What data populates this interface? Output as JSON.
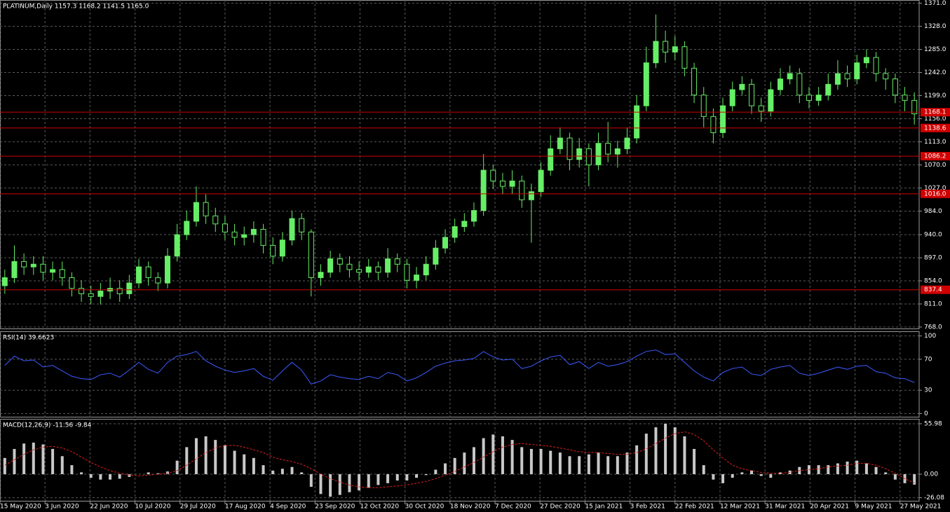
{
  "chart_data": [
    {
      "type": "candlestick",
      "title": "PLATINUM,Daily  1157.3 1168.2 1141.5 1165.0",
      "color": "#66ee66",
      "grid": true,
      "xlim": [
        0,
        96
      ],
      "ylim": [
        764,
        1377
      ],
      "yticks": [
        {
          "value": 1371,
          "label": "1371.0"
        },
        {
          "value": 1328,
          "label": "1328.0"
        },
        {
          "value": 1285,
          "label": "1285.0"
        },
        {
          "value": 1242,
          "label": "1242.0"
        },
        {
          "value": 1199,
          "label": "1199.0"
        },
        {
          "value": 1156,
          "label": "1156.0"
        },
        {
          "value": 1113,
          "label": "1113.0"
        },
        {
          "value": 1070,
          "label": "1070.0"
        },
        {
          "value": 1027,
          "label": "1027.0"
        },
        {
          "value": 984,
          "label": "984.0"
        },
        {
          "value": 940,
          "label": "940.0"
        },
        {
          "value": 897,
          "label": "897.0"
        },
        {
          "value": 854,
          "label": "854.0"
        },
        {
          "value": 811,
          "label": "811.0"
        },
        {
          "value": 768,
          "label": "768.0"
        }
      ],
      "levels": [
        1168.1,
        1138.6,
        1086.2,
        {
          "value": 1016,
          "label": "1016.0"
        },
        837.4
      ],
      "level_color": "#d00000",
      "open": [
        845,
        860,
        890,
        880,
        885,
        870,
        875,
        860,
        840,
        830,
        825,
        835,
        840,
        830,
        850,
        880,
        860,
        850,
        900,
        940,
        965,
        1000,
        975,
        960,
        945,
        935,
        940,
        950,
        920,
        900,
        930,
        970,
        945,
        860,
        870,
        895,
        885,
        875,
        870,
        880,
        870,
        895,
        885,
        855,
        865,
        885,
        915,
        935,
        955,
        965,
        985,
        1060,
        1040,
        1030,
        1040,
        1005,
        1020,
        1060,
        1100,
        1120,
        1080,
        1100,
        1070,
        1110,
        1090,
        1100,
        1120,
        1180,
        1260,
        1300,
        1280,
        1290,
        1250,
        1200,
        1160,
        1130,
        1180,
        1210,
        1220,
        1180,
        1170,
        1210,
        1230,
        1240,
        1200,
        1190,
        1200,
        1220,
        1240,
        1230,
        1260,
        1270,
        1240,
        1230,
        1200,
        1190
      ],
      "high": [
        875,
        920,
        905,
        900,
        900,
        890,
        890,
        870,
        855,
        845,
        850,
        860,
        855,
        865,
        895,
        890,
        870,
        915,
        960,
        985,
        1030,
        1015,
        990,
        975,
        960,
        955,
        965,
        960,
        935,
        945,
        985,
        980,
        950,
        885,
        910,
        905,
        900,
        890,
        895,
        890,
        915,
        905,
        895,
        880,
        900,
        930,
        950,
        970,
        980,
        1000,
        1090,
        1070,
        1055,
        1060,
        1050,
        1035,
        1075,
        1125,
        1140,
        1130,
        1120,
        1110,
        1130,
        1150,
        1115,
        1140,
        1200,
        1290,
        1350,
        1320,
        1310,
        1300,
        1260,
        1215,
        1175,
        1195,
        1225,
        1235,
        1230,
        1195,
        1225,
        1250,
        1255,
        1250,
        1215,
        1215,
        1240,
        1265,
        1255,
        1275,
        1285,
        1280,
        1250,
        1240,
        1215,
        1205
      ],
      "low": [
        830,
        850,
        865,
        865,
        855,
        855,
        845,
        825,
        815,
        810,
        810,
        820,
        815,
        820,
        840,
        845,
        835,
        840,
        890,
        930,
        955,
        960,
        945,
        930,
        920,
        920,
        925,
        905,
        885,
        890,
        920,
        930,
        825,
        845,
        860,
        870,
        860,
        855,
        860,
        855,
        860,
        870,
        840,
        840,
        855,
        875,
        905,
        925,
        945,
        955,
        975,
        1025,
        1015,
        1015,
        990,
        925,
        1010,
        1050,
        1090,
        1060,
        1065,
        1030,
        1060,
        1075,
        1065,
        1090,
        1110,
        1170,
        1250,
        1260,
        1265,
        1235,
        1185,
        1140,
        1110,
        1120,
        1170,
        1200,
        1165,
        1150,
        1160,
        1200,
        1220,
        1185,
        1175,
        1180,
        1190,
        1210,
        1215,
        1220,
        1250,
        1225,
        1210,
        1185,
        1170,
        1145
      ],
      "close": [
        860,
        890,
        880,
        885,
        870,
        875,
        860,
        840,
        830,
        825,
        835,
        840,
        830,
        850,
        880,
        860,
        850,
        900,
        940,
        965,
        1000,
        975,
        960,
        945,
        935,
        940,
        950,
        920,
        900,
        930,
        970,
        945,
        860,
        870,
        895,
        885,
        875,
        870,
        880,
        870,
        895,
        885,
        855,
        865,
        885,
        915,
        935,
        955,
        965,
        985,
        1060,
        1040,
        1030,
        1040,
        1005,
        1020,
        1060,
        1100,
        1120,
        1080,
        1100,
        1070,
        1110,
        1090,
        1100,
        1120,
        1180,
        1260,
        1300,
        1280,
        1290,
        1250,
        1200,
        1160,
        1130,
        1180,
        1210,
        1220,
        1180,
        1170,
        1210,
        1230,
        1240,
        1200,
        1190,
        1200,
        1220,
        1240,
        1230,
        1260,
        1270,
        1240,
        1230,
        1200,
        1190,
        1165
      ]
    },
    {
      "type": "line",
      "title": "RSI(14) 39.6623",
      "color": "#3b5bff",
      "grid": true,
      "xlim": [
        0,
        96
      ],
      "ylim": [
        -5,
        106
      ],
      "yticks": [
        100,
        70,
        30,
        0
      ],
      "values": [
        62,
        74,
        68,
        69,
        60,
        62,
        55,
        48,
        45,
        44,
        50,
        52,
        47,
        56,
        66,
        57,
        52,
        66,
        74,
        76,
        80,
        68,
        61,
        56,
        53,
        55,
        58,
        48,
        43,
        55,
        66,
        56,
        38,
        42,
        50,
        47,
        45,
        44,
        48,
        45,
        53,
        50,
        42,
        46,
        53,
        61,
        65,
        68,
        69,
        71,
        80,
        73,
        69,
        70,
        58,
        61,
        68,
        73,
        75,
        63,
        67,
        58,
        66,
        61,
        63,
        67,
        74,
        80,
        82,
        76,
        77,
        66,
        55,
        47,
        42,
        53,
        58,
        60,
        51,
        49,
        57,
        60,
        62,
        52,
        49,
        52,
        56,
        60,
        57,
        61,
        62,
        54,
        52,
        46,
        45,
        40
      ]
    },
    {
      "type": "macd",
      "title": "MACD(12,26,9) -11.56 -9.84",
      "grid": true,
      "xlim": [
        0,
        96
      ],
      "ylim": [
        -30.3,
        61.4
      ],
      "yticks": [
        55.98,
        {
          "value": 0,
          "label": "0.00"
        },
        -26.08
      ],
      "xticks": [
        {
          "value": 0,
          "label": "15 May 2020"
        },
        {
          "value": 4.7,
          "label": "3 Jun 2020"
        },
        {
          "value": 9.4,
          "label": "22 Jun 2020"
        },
        {
          "value": 14.1,
          "label": "10 Jul 2020"
        },
        {
          "value": 18.8,
          "label": "29 Jul 2020"
        },
        {
          "value": 23.5,
          "label": "17 Aug 2020"
        },
        {
          "value": 28.2,
          "label": "4 Sep 2020"
        },
        {
          "value": 32.9,
          "label": "23 Sep 2020"
        },
        {
          "value": 37.6,
          "label": "12 Oct 2020"
        },
        {
          "value": 42.3,
          "label": "30 Oct 2020"
        },
        {
          "value": 47,
          "label": "18 Nov 2020"
        },
        {
          "value": 51.7,
          "label": "7 Dec 2020"
        },
        {
          "value": 56.4,
          "label": "27 Dec 2020"
        },
        {
          "value": 61.1,
          "label": "15 Jan 2021"
        },
        {
          "value": 65.8,
          "label": "3 Feb 2021"
        },
        {
          "value": 70.5,
          "label": "22 Feb 2021"
        },
        {
          "value": 75.2,
          "label": "12 Mar 2021"
        },
        {
          "value": 79.9,
          "label": "31 Mar 2021"
        },
        {
          "value": 84.6,
          "label": "20 Apr 2021"
        },
        {
          "value": 89.3,
          "label": "9 May 2021"
        },
        {
          "value": 94,
          "label": "27 May 2021"
        }
      ],
      "histogram_color": "#c8c8c8",
      "signal_color": "#e02020",
      "histogram": [
        18,
        28,
        34,
        35,
        33,
        28,
        20,
        10,
        2,
        -4,
        -6,
        -6,
        -5,
        -3,
        0,
        2,
        1,
        3,
        15,
        30,
        40,
        42,
        38,
        32,
        26,
        22,
        18,
        10,
        4,
        6,
        8,
        2,
        -14,
        -22,
        -25,
        -23,
        -20,
        -18,
        -15,
        -12,
        -10,
        -7,
        -7,
        -4,
        -1,
        5,
        12,
        18,
        24,
        30,
        40,
        44,
        42,
        38,
        30,
        28,
        28,
        26,
        24,
        20,
        20,
        22,
        24,
        20,
        20,
        24,
        32,
        45,
        52,
        56,
        52,
        42,
        28,
        10,
        -6,
        -10,
        -4,
        2,
        4,
        -2,
        -4,
        2,
        4,
        8,
        10,
        10,
        10,
        12,
        14,
        15,
        12,
        8,
        2,
        -6,
        -10,
        -11.56
      ],
      "signal": [
        10,
        16,
        22,
        27,
        30,
        31,
        29,
        25,
        19,
        13,
        8,
        4,
        1,
        -1,
        -2,
        -1,
        0,
        1,
        4,
        10,
        17,
        24,
        29,
        32,
        32,
        30,
        27,
        24,
        19,
        16,
        14,
        11,
        6,
        0,
        -5,
        -9,
        -12,
        -14,
        -15,
        -15,
        -14,
        -13,
        -12,
        -10,
        -8,
        -5,
        -1,
        3,
        8,
        13,
        19,
        25,
        30,
        33,
        34,
        33,
        32,
        31,
        29,
        27,
        25,
        24,
        24,
        23,
        22,
        22,
        24,
        28,
        34,
        40,
        45,
        47,
        44,
        37,
        27,
        18,
        10,
        6,
        4,
        2,
        1,
        1,
        2,
        4,
        5,
        6,
        8,
        9,
        10,
        12,
        12,
        10,
        6,
        1,
        -5,
        -9.84
      ]
    }
  ]
}
